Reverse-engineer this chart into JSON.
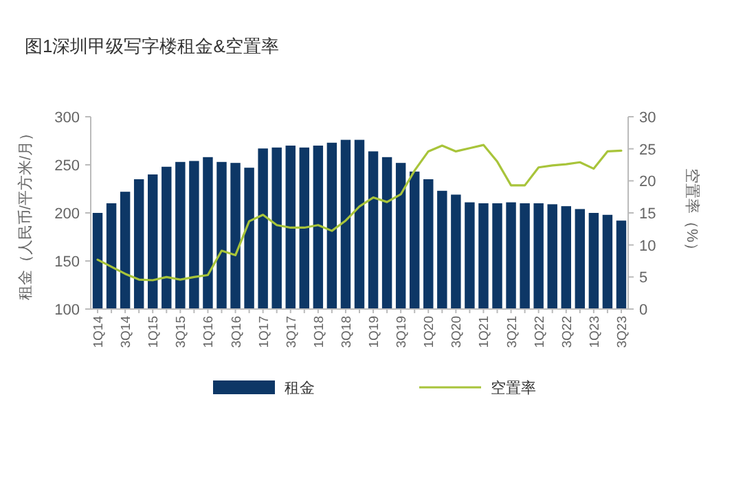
{
  "chart_data": {
    "type": "bar",
    "title": "图1深圳甲级写字楼租金&空置率",
    "ylabel": "租金（人民币/平方米/月）",
    "y2label": "空置率（%）",
    "categories": [
      "1Q14",
      null,
      "3Q14",
      null,
      "1Q15",
      null,
      "3Q15",
      null,
      "1Q16",
      null,
      "3Q16",
      null,
      "1Q17",
      null,
      "3Q17",
      null,
      "1Q18",
      null,
      "3Q18",
      null,
      "1Q19",
      null,
      "3Q19",
      null,
      "1Q20",
      null,
      "3Q20",
      null,
      "1Q21",
      null,
      "3Q21",
      null,
      "1Q22",
      null,
      "3Q22",
      null,
      "1Q23",
      null,
      "3Q23"
    ],
    "series": [
      {
        "name": "租金",
        "color": "#0d3766",
        "values": [
          200,
          210,
          222,
          235,
          240,
          248,
          253,
          254,
          258,
          253,
          252,
          247,
          267,
          268,
          270,
          268,
          270,
          273,
          276,
          276,
          264,
          258,
          252,
          243,
          235,
          223,
          219,
          211,
          210,
          210,
          211,
          210,
          210,
          209,
          207,
          204,
          200,
          198,
          192
        ]
      },
      {
        "name": "空置率",
        "type": "line",
        "axis": "y2",
        "color": "#a8c43a",
        "values": [
          7.7,
          6.6,
          5.5,
          4.6,
          4.5,
          5.0,
          4.6,
          5.0,
          5.3,
          9.1,
          8.4,
          13.7,
          14.7,
          13.1,
          12.7,
          12.7,
          13.1,
          12.2,
          13.8,
          16.0,
          17.4,
          16.7,
          17.9,
          21.6,
          24.6,
          25.5,
          24.6,
          25.1,
          25.6,
          23.0,
          19.3,
          19.3,
          22.1,
          22.4,
          22.6,
          22.9,
          21.9,
          24.6,
          24.7
        ]
      }
    ],
    "ylim": [
      100,
      300
    ],
    "yticks": [
      100,
      150,
      200,
      250,
      300
    ],
    "y2lim": [
      0,
      30
    ],
    "y2ticks": [
      0,
      5,
      10,
      15,
      20,
      25,
      30
    ],
    "legend": "bottom",
    "grid": false
  }
}
